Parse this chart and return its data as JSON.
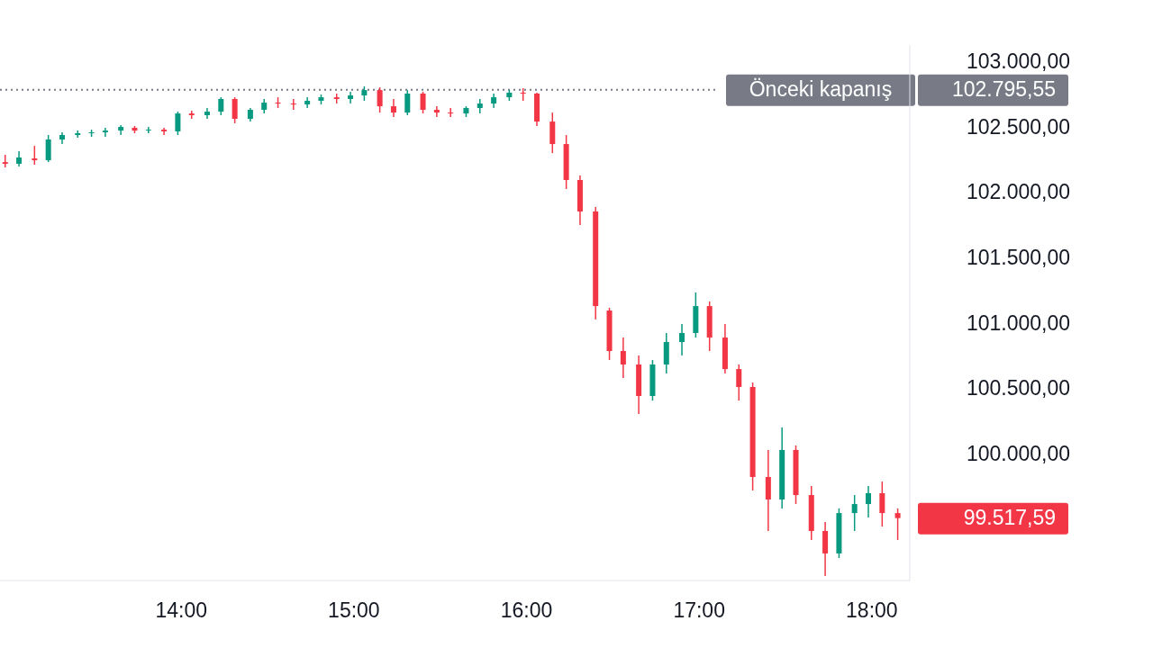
{
  "chart_data": {
    "type": "candlestick",
    "x": [
      12.98,
      13.06,
      13.15,
      13.23,
      13.31,
      13.4,
      13.48,
      13.56,
      13.65,
      13.73,
      13.81,
      13.9,
      13.98,
      14.06,
      14.15,
      14.23,
      14.31,
      14.4,
      14.48,
      14.56,
      14.65,
      14.73,
      14.81,
      14.9,
      14.98,
      15.06,
      15.15,
      15.23,
      15.31,
      15.4,
      15.48,
      15.56,
      15.65,
      15.73,
      15.81,
      15.9,
      15.98,
      16.06,
      16.15,
      16.23,
      16.31,
      16.4,
      16.48,
      16.56,
      16.65,
      16.73,
      16.81,
      16.9,
      16.98,
      17.06,
      17.15,
      17.23,
      17.31,
      17.4,
      17.48,
      17.56,
      17.65,
      17.73,
      17.81,
      17.9,
      17.98,
      18.06,
      18.15
    ],
    "ohlc": [
      [
        102242,
        102298,
        102201,
        102229
      ],
      [
        102229,
        102325,
        102208,
        102277
      ],
      [
        102270,
        102366,
        102222,
        102256
      ],
      [
        102256,
        102449,
        102242,
        102415
      ],
      [
        102415,
        102470,
        102380,
        102449
      ],
      [
        102449,
        102483,
        102428,
        102463
      ],
      [
        102463,
        102490,
        102435,
        102470
      ],
      [
        102470,
        102504,
        102435,
        102483
      ],
      [
        102483,
        102525,
        102449,
        102511
      ],
      [
        102504,
        102518,
        102463,
        102483
      ],
      [
        102483,
        102511,
        102463,
        102490
      ],
      [
        102490,
        102504,
        102449,
        102477
      ],
      [
        102477,
        102628,
        102449,
        102614
      ],
      [
        102614,
        102635,
        102573,
        102601
      ],
      [
        102601,
        102656,
        102573,
        102628
      ],
      [
        102628,
        102738,
        102601,
        102725
      ],
      [
        102725,
        102738,
        102539,
        102573
      ],
      [
        102573,
        102656,
        102552,
        102642
      ],
      [
        102642,
        102725,
        102614,
        102697
      ],
      [
        102697,
        102738,
        102656,
        102690
      ],
      [
        102690,
        102725,
        102642,
        102683
      ],
      [
        102683,
        102738,
        102656,
        102711
      ],
      [
        102711,
        102759,
        102683,
        102738
      ],
      [
        102738,
        102766,
        102690,
        102725
      ],
      [
        102725,
        102780,
        102690,
        102752
      ],
      [
        102752,
        102821,
        102711,
        102793
      ],
      [
        102793,
        102814,
        102621,
        102669
      ],
      [
        102669,
        102725,
        102587,
        102621
      ],
      [
        102621,
        102793,
        102601,
        102766
      ],
      [
        102766,
        102780,
        102614,
        102642
      ],
      [
        102642,
        102669,
        102587,
        102621
      ],
      [
        102621,
        102656,
        102587,
        102614
      ],
      [
        102614,
        102669,
        102587,
        102656
      ],
      [
        102656,
        102725,
        102614,
        102690
      ],
      [
        102690,
        102766,
        102656,
        102738
      ],
      [
        102738,
        102793,
        102711,
        102773
      ],
      [
        102773,
        102807,
        102711,
        102766
      ],
      [
        102766,
        102773,
        102518,
        102552
      ],
      [
        102552,
        102621,
        102311,
        102380
      ],
      [
        102380,
        102449,
        102036,
        102105
      ],
      [
        102105,
        102139,
        101760,
        101864
      ],
      [
        101864,
        101898,
        101037,
        101140
      ],
      [
        101106,
        101127,
        100727,
        100796
      ],
      [
        100796,
        100899,
        100590,
        100693
      ],
      [
        100693,
        100762,
        100314,
        100452
      ],
      [
        100452,
        100727,
        100417,
        100693
      ],
      [
        100693,
        100934,
        100624,
        100865
      ],
      [
        100865,
        101003,
        100762,
        100934
      ],
      [
        100934,
        101244,
        100899,
        101140
      ],
      [
        101140,
        101175,
        100796,
        100899
      ],
      [
        100899,
        101003,
        100624,
        100658
      ],
      [
        100658,
        100693,
        100417,
        100521
      ],
      [
        100521,
        100555,
        99729,
        99832
      ],
      [
        99832,
        100039,
        99419,
        99660
      ],
      [
        99660,
        100211,
        99591,
        100039
      ],
      [
        100039,
        100073,
        99625,
        99694
      ],
      [
        99694,
        99763,
        99350,
        99419
      ],
      [
        99419,
        99488,
        99074,
        99247
      ],
      [
        99247,
        99591,
        99212,
        99556
      ],
      [
        99556,
        99694,
        99419,
        99625
      ],
      [
        99625,
        99763,
        99522,
        99708
      ],
      [
        99708,
        99797,
        99453,
        99556
      ],
      [
        99556,
        99591,
        99350,
        99517.59
      ]
    ],
    "xticks": [
      {
        "value": 14,
        "label": "14:00"
      },
      {
        "value": 15,
        "label": "15:00"
      },
      {
        "value": 16,
        "label": "16:00"
      },
      {
        "value": 17,
        "label": "17:00"
      },
      {
        "value": 18,
        "label": "18:00"
      }
    ],
    "xlim": [
      12.95,
      18.22
    ],
    "ylim": [
      99040,
      103138
    ],
    "yticks": [
      {
        "value": 100000,
        "label": "100.000,00"
      },
      {
        "value": 100500,
        "label": "100.500,00"
      },
      {
        "value": 101000,
        "label": "101.000,00"
      },
      {
        "value": 101500,
        "label": "101.500,00"
      },
      {
        "value": 102000,
        "label": "102.000,00"
      },
      {
        "value": 102500,
        "label": "102.500,00"
      },
      {
        "value": 103000,
        "label": "103.000,00"
      }
    ],
    "ref_lines": [
      {
        "axis": "y",
        "value": 102795.55,
        "label": "Önceki kapanış",
        "color": "#787b86",
        "line_style": "dotted"
      }
    ],
    "annotations": [
      "102.795,55",
      "99.517,59"
    ]
  }
}
